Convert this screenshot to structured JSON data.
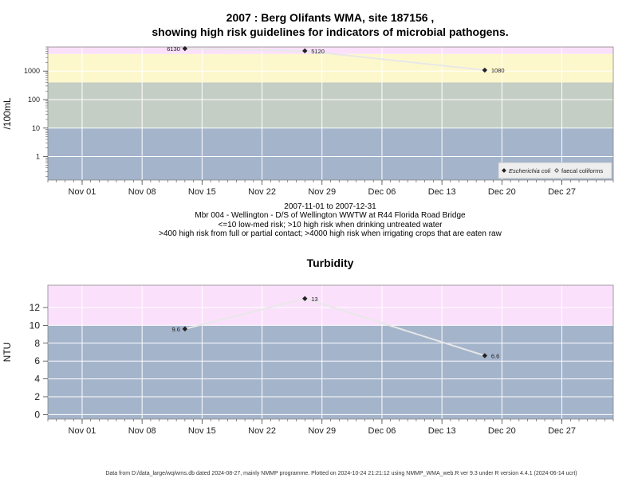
{
  "title_line1": "2007 : Berg Olifants WMA, site 187156 ,",
  "title_line2": "showing high risk guidelines for indicators of microbial pathogens.",
  "subtitle_lines": [
    "2007-11-01 to 2007-12-31",
    "Mbr 004 - Wellington - D/S of Wellington WWTW at R44 Florida Road Bridge",
    "<=10 low-med risk; >10 high risk when drinking untreated water",
    ">400 high risk from full or partial contact; >4000 high risk when irrigating crops that are eaten raw"
  ],
  "footer": "Data from D:/data_large/wq/wms.db dated 2024-08-27, mainly NMMP programme. Plotted on 2024-10-24 21:21:12 using NMMP_WMA_web.R ver 9.3 under R version 4.4.1 (2024-06-14 ucrt)",
  "colors": {
    "band_top": "#fbe0fb",
    "band_yellow": "#fdf8cc",
    "band_green": "#c5cec4",
    "band_blue": "#a4b4cb",
    "grid": "#ffffff",
    "line": "#e8e8e8",
    "point": "#222222"
  },
  "chart_data": [
    {
      "type": "line",
      "title": "",
      "ylabel": "/100mL",
      "yscale": "log",
      "xlim": [
        "2007-10-28",
        "2008-01-02"
      ],
      "ylim": [
        0.15,
        7000
      ],
      "x_ticks": [
        "Nov 01",
        "Nov 08",
        "Nov 15",
        "Nov 22",
        "Nov 29",
        "Dec 06",
        "Dec 13",
        "Dec 20",
        "Dec 27"
      ],
      "x_tick_dates": [
        "2007-11-01",
        "2007-11-08",
        "2007-11-15",
        "2007-11-22",
        "2007-11-29",
        "2007-12-06",
        "2007-12-13",
        "2007-12-20",
        "2007-12-27"
      ],
      "y_ticks": [
        1,
        10,
        100,
        1000
      ],
      "y_tick_labels": [
        "1",
        "10",
        "100",
        "1000"
      ],
      "bands": [
        {
          "from": 0.15,
          "to": 10,
          "color": "#a4b4cb"
        },
        {
          "from": 10,
          "to": 400,
          "color": "#c5cec4"
        },
        {
          "from": 400,
          "to": 4000,
          "color": "#fdf8cc"
        },
        {
          "from": 4000,
          "to": 7000,
          "color": "#fbe0fb"
        }
      ],
      "legend_position": "bottom-right",
      "legend": [
        {
          "label": "Escherichia coli",
          "marker": "filled-diamond",
          "italic": true
        },
        {
          "label": "faecal coliforms",
          "marker": "open-diamond",
          "italic": false
        }
      ],
      "series": [
        {
          "name": "Escherichia coli",
          "x": [
            "2007-11-13",
            "2007-11-27",
            "2007-12-18"
          ],
          "values": [
            6130,
            5120,
            1080
          ],
          "labels": [
            "6130",
            "5120",
            "1080"
          ]
        }
      ]
    },
    {
      "type": "line",
      "title": "Turbidity",
      "ylabel": "NTU",
      "yscale": "linear",
      "xlim": [
        "2007-10-28",
        "2008-01-02"
      ],
      "ylim": [
        -0.5,
        14.5
      ],
      "x_ticks": [
        "Nov 01",
        "Nov 08",
        "Nov 15",
        "Nov 22",
        "Nov 29",
        "Dec 06",
        "Dec 13",
        "Dec 20",
        "Dec 27"
      ],
      "x_tick_dates": [
        "2007-11-01",
        "2007-11-08",
        "2007-11-15",
        "2007-11-22",
        "2007-11-29",
        "2007-12-06",
        "2007-12-13",
        "2007-12-20",
        "2007-12-27"
      ],
      "y_ticks": [
        0,
        2,
        4,
        6,
        8,
        10,
        12
      ],
      "y_tick_labels": [
        "0",
        "2",
        "4",
        "6",
        "8",
        "10",
        "12"
      ],
      "bands": [
        {
          "from": -0.5,
          "to": 10,
          "color": "#a4b4cb"
        },
        {
          "from": 10,
          "to": 14.5,
          "color": "#fbe0fb"
        }
      ],
      "series": [
        {
          "name": "",
          "x": [
            "2007-11-13",
            "2007-11-27",
            "2007-12-18"
          ],
          "values": [
            9.6,
            13,
            6.6
          ],
          "labels": [
            "9.6",
            "13",
            "6.6"
          ]
        }
      ]
    }
  ]
}
